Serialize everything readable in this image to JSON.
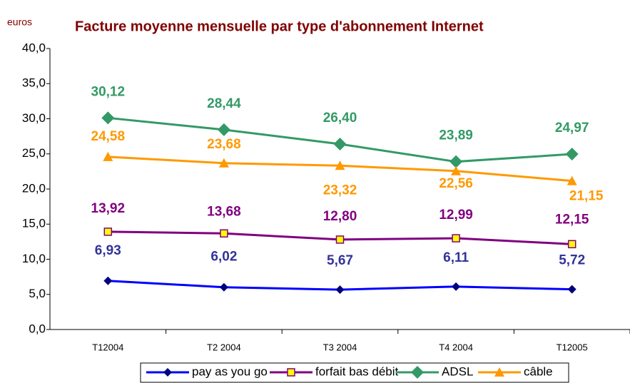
{
  "chart_data": {
    "type": "line",
    "title": "Facture moyenne mensuelle par type d'abonnement Internet",
    "y_axis_label": "euros",
    "categories": [
      "T12004",
      "T2 2004",
      "T3 2004",
      "T4 2004",
      "T12005"
    ],
    "series": [
      {
        "name": "pay as you go",
        "color": "#0000ff",
        "values": [
          6.93,
          6.02,
          5.67,
          6.11,
          5.72
        ],
        "value_labels": [
          "6,93",
          "6,02",
          "5,67",
          "6,11",
          "5,72"
        ]
      },
      {
        "name": "forfait bas débit",
        "color": "#800080",
        "values": [
          13.92,
          13.68,
          12.8,
          12.99,
          12.15
        ],
        "value_labels": [
          "13,92",
          "13,68",
          "12,80",
          "12,99",
          "12,15"
        ]
      },
      {
        "name": "ADSL",
        "color": "#339966",
        "values": [
          30.12,
          28.44,
          26.4,
          23.89,
          24.97
        ],
        "value_labels": [
          "30,12",
          "28,44",
          "26,40",
          "23,89",
          "24,97"
        ]
      },
      {
        "name": "câble",
        "color": "#ff9900",
        "values": [
          24.58,
          23.68,
          23.32,
          22.56,
          21.15
        ],
        "value_labels": [
          "24,58",
          "23,68",
          "23,32",
          "22,56",
          "21,15"
        ]
      }
    ],
    "ylim": [
      0,
      40
    ],
    "yticks": [
      {
        "value": 0,
        "label": "0,0"
      },
      {
        "value": 5,
        "label": "5,0"
      },
      {
        "value": 10,
        "label": "10,0"
      },
      {
        "value": 15,
        "label": "15,0"
      },
      {
        "value": 20,
        "label": "20,0"
      },
      {
        "value": 25,
        "label": "25,0"
      },
      {
        "value": 30,
        "label": "30,0"
      },
      {
        "value": 35,
        "label": "35,0"
      },
      {
        "value": 40,
        "label": "40,0"
      }
    ],
    "legend": "bottom"
  }
}
